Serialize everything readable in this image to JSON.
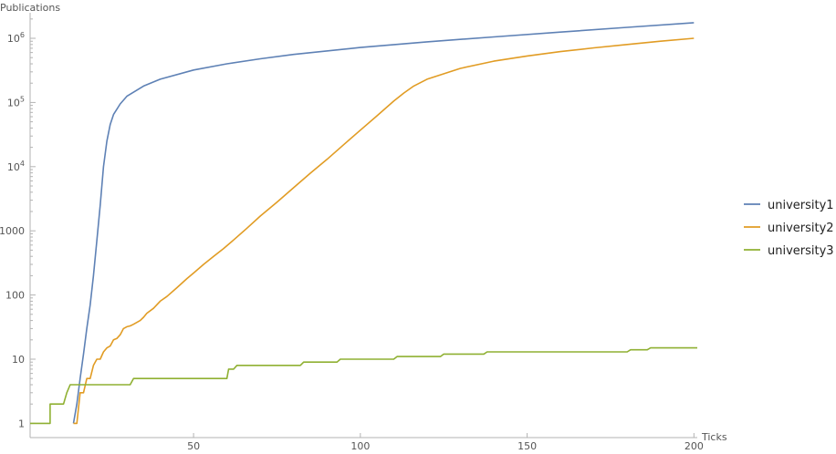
{
  "chart_data": {
    "type": "line",
    "xlabel": "Ticks",
    "ylabel": "Publications",
    "y_scale": "log",
    "xlim": [
      1,
      201
    ],
    "ylim": [
      0.6,
      2500000
    ],
    "grid": false,
    "legend_position": "right",
    "x_ticks": [
      50,
      100,
      150,
      200
    ],
    "y_ticks": [
      {
        "value": 1,
        "base": "1",
        "exp": ""
      },
      {
        "value": 10,
        "base": "10",
        "exp": ""
      },
      {
        "value": 100,
        "base": "100",
        "exp": ""
      },
      {
        "value": 1000,
        "base": "1000",
        "exp": ""
      },
      {
        "value": 10000,
        "base": "10",
        "exp": "4"
      },
      {
        "value": 100000,
        "base": "10",
        "exp": "5"
      },
      {
        "value": 1000000,
        "base": "10",
        "exp": "6"
      }
    ],
    "series": [
      {
        "name": "university1",
        "color": "#5e81b5",
        "points": [
          [
            14,
            1
          ],
          [
            15,
            2
          ],
          [
            16,
            5
          ],
          [
            17,
            12
          ],
          [
            18,
            30
          ],
          [
            19,
            70
          ],
          [
            20,
            200
          ],
          [
            21,
            700
          ],
          [
            22,
            2500
          ],
          [
            23,
            10000
          ],
          [
            24,
            25000
          ],
          [
            25,
            45000
          ],
          [
            26,
            65000
          ],
          [
            28,
            95000
          ],
          [
            30,
            125000
          ],
          [
            35,
            180000
          ],
          [
            40,
            230000
          ],
          [
            50,
            320000
          ],
          [
            60,
            400000
          ],
          [
            70,
            480000
          ],
          [
            80,
            560000
          ],
          [
            100,
            720000
          ],
          [
            120,
            880000
          ],
          [
            140,
            1050000
          ],
          [
            160,
            1250000
          ],
          [
            180,
            1480000
          ],
          [
            200,
            1750000
          ]
        ]
      },
      {
        "name": "university2",
        "color": "#e19c24",
        "points": [
          [
            14,
            1
          ],
          [
            15,
            1
          ],
          [
            16,
            3
          ],
          [
            17,
            3
          ],
          [
            18,
            5
          ],
          [
            19,
            5
          ],
          [
            20,
            8
          ],
          [
            21,
            10
          ],
          [
            22,
            10
          ],
          [
            23,
            13
          ],
          [
            24,
            15
          ],
          [
            25,
            16
          ],
          [
            26,
            20
          ],
          [
            27,
            21
          ],
          [
            28,
            24
          ],
          [
            29,
            30
          ],
          [
            30,
            32
          ],
          [
            31,
            33
          ],
          [
            32,
            35
          ],
          [
            34,
            40
          ],
          [
            35,
            45
          ],
          [
            36,
            52
          ],
          [
            38,
            62
          ],
          [
            40,
            80
          ],
          [
            42,
            95
          ],
          [
            45,
            130
          ],
          [
            48,
            180
          ],
          [
            50,
            220
          ],
          [
            53,
            300
          ],
          [
            56,
            400
          ],
          [
            59,
            530
          ],
          [
            62,
            720
          ],
          [
            66,
            1100
          ],
          [
            70,
            1700
          ],
          [
            75,
            2800
          ],
          [
            80,
            4700
          ],
          [
            85,
            7900
          ],
          [
            90,
            13000
          ],
          [
            95,
            22000
          ],
          [
            100,
            37000
          ],
          [
            105,
            62000
          ],
          [
            110,
            105000
          ],
          [
            113,
            140000
          ],
          [
            116,
            180000
          ],
          [
            120,
            230000
          ],
          [
            130,
            340000
          ],
          [
            140,
            440000
          ],
          [
            150,
            530000
          ],
          [
            160,
            620000
          ],
          [
            170,
            710000
          ],
          [
            180,
            800000
          ],
          [
            190,
            900000
          ],
          [
            200,
            1000000
          ]
        ]
      },
      {
        "name": "university3",
        "color": "#8fb032",
        "points": [
          [
            1,
            1
          ],
          [
            7,
            1
          ],
          [
            7,
            2
          ],
          [
            11,
            2
          ],
          [
            12,
            3
          ],
          [
            13,
            4
          ],
          [
            31,
            4
          ],
          [
            32,
            5
          ],
          [
            56,
            5
          ],
          [
            57,
            5
          ],
          [
            60,
            5
          ],
          [
            60.5,
            7
          ],
          [
            62,
            7
          ],
          [
            63,
            8
          ],
          [
            82,
            8
          ],
          [
            83,
            9
          ],
          [
            93,
            9
          ],
          [
            94,
            10
          ],
          [
            110,
            10
          ],
          [
            111,
            11
          ],
          [
            124,
            11
          ],
          [
            125,
            12
          ],
          [
            137,
            12
          ],
          [
            138,
            13
          ],
          [
            180,
            13
          ],
          [
            181,
            14
          ],
          [
            186,
            14
          ],
          [
            187,
            15
          ],
          [
            201,
            15
          ]
        ]
      }
    ]
  }
}
